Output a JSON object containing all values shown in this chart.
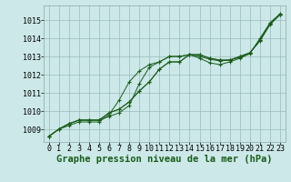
{
  "background_color": "#cce8e8",
  "grid_color": "#99bbbb",
  "line_color": "#1a5c1a",
  "xlabel": "Graphe pression niveau de la mer (hPa)",
  "xlabel_fontsize": 7.5,
  "tick_fontsize": 6,
  "xlim": [
    -0.5,
    23.5
  ],
  "ylim": [
    1008.3,
    1015.8
  ],
  "yticks": [
    1009,
    1010,
    1011,
    1012,
    1013,
    1014,
    1015
  ],
  "xticks": [
    0,
    1,
    2,
    3,
    4,
    5,
    6,
    7,
    8,
    9,
    10,
    11,
    12,
    13,
    14,
    15,
    16,
    17,
    18,
    19,
    20,
    21,
    22,
    23
  ],
  "series1_x": [
    0,
    1,
    2,
    3,
    4,
    5,
    6,
    7,
    8,
    9,
    10,
    11,
    12,
    13,
    14,
    15,
    16,
    17,
    18,
    19,
    20,
    21,
    22,
    23
  ],
  "series1_y": [
    1008.6,
    1009.0,
    1009.3,
    1009.5,
    1009.5,
    1009.5,
    1009.9,
    1010.1,
    1010.5,
    1011.1,
    1011.6,
    1012.3,
    1012.7,
    1012.7,
    1013.1,
    1013.1,
    1012.9,
    1012.8,
    1012.8,
    1013.0,
    1013.2,
    1013.9,
    1014.8,
    1015.3
  ],
  "series2_x": [
    0,
    1,
    2,
    3,
    4,
    5,
    6,
    7,
    8,
    9,
    10,
    11,
    12,
    13,
    14,
    15,
    16,
    17,
    18,
    19,
    20,
    21,
    22,
    23
  ],
  "series2_y": [
    1008.6,
    1009.0,
    1009.3,
    1009.5,
    1009.5,
    1009.5,
    1009.9,
    1010.1,
    1010.5,
    1011.1,
    1011.6,
    1012.3,
    1012.7,
    1012.7,
    1013.1,
    1013.1,
    1012.9,
    1012.8,
    1012.8,
    1013.0,
    1013.2,
    1013.9,
    1014.8,
    1015.3
  ],
  "series3_x": [
    0,
    1,
    2,
    3,
    4,
    5,
    6,
    7,
    8,
    9,
    10,
    11,
    12,
    13,
    14,
    15,
    16,
    17,
    18,
    19,
    20,
    21,
    22,
    23
  ],
  "series3_y": [
    1008.6,
    1009.0,
    1009.3,
    1009.5,
    1009.5,
    1009.5,
    1009.7,
    1009.9,
    1010.3,
    1011.5,
    1012.4,
    1012.7,
    1013.0,
    1013.0,
    1013.1,
    1013.0,
    1012.85,
    1012.75,
    1012.8,
    1012.95,
    1013.2,
    1013.85,
    1014.75,
    1015.3
  ],
  "series4_x": [
    0,
    1,
    2,
    3,
    4,
    5,
    6,
    7,
    8,
    9,
    10,
    11,
    12,
    13,
    14,
    15,
    16,
    17,
    18,
    19,
    20,
    21,
    22,
    23
  ],
  "series4_y": [
    1008.6,
    1009.0,
    1009.2,
    1009.4,
    1009.4,
    1009.4,
    1009.8,
    1010.6,
    1011.6,
    1012.2,
    1012.55,
    1012.7,
    1013.0,
    1013.0,
    1013.1,
    1012.9,
    1012.65,
    1012.55,
    1012.7,
    1012.9,
    1013.15,
    1014.0,
    1014.85,
    1015.35
  ]
}
